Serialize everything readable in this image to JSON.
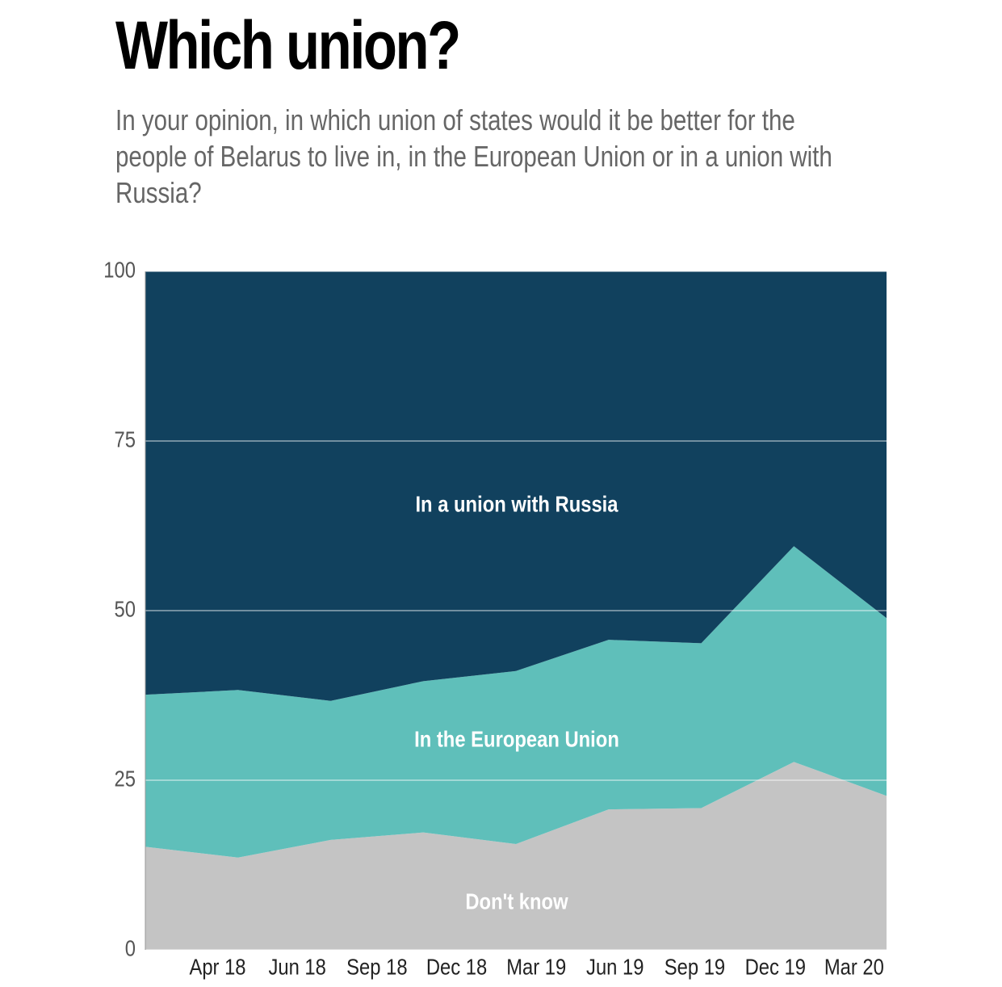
{
  "chart_data": {
    "type": "stacked_area",
    "title": "Which union?",
    "subtitle": "In your opinion, in which union of states would it be better for the people of Belarus to live in, in the European Union or in a union with Russia?",
    "x": [
      0,
      1,
      2,
      3,
      4,
      5,
      6,
      7,
      8
    ],
    "xlim": [
      0,
      8
    ],
    "xticks": [
      {
        "value": 0.78,
        "label": "Apr 18"
      },
      {
        "value": 1.64,
        "label": "Jun 18"
      },
      {
        "value": 2.5,
        "label": "Sep 18"
      },
      {
        "value": 3.36,
        "label": "Dec 18"
      },
      {
        "value": 4.22,
        "label": "Mar 19"
      },
      {
        "value": 5.07,
        "label": "Jun 19"
      },
      {
        "value": 5.93,
        "label": "Sep 19"
      },
      {
        "value": 6.8,
        "label": "Dec 19"
      },
      {
        "value": 7.65,
        "label": "Mar 20"
      }
    ],
    "ylim": [
      0,
      100
    ],
    "yticks": [
      0,
      25,
      50,
      75,
      100
    ],
    "grid": true,
    "series": [
      {
        "name": "Don't know",
        "color": "#c4c4c4",
        "values": [
          15.2,
          13.6,
          16.2,
          17.3,
          15.6,
          20.7,
          20.9,
          27.7,
          22.7
        ]
      },
      {
        "name": "In the European Union",
        "color": "#5fbfba",
        "values": [
          22.4,
          24.7,
          20.5,
          22.3,
          25.5,
          25.0,
          24.3,
          31.8,
          26.2
        ]
      },
      {
        "name": "In a union with Russia",
        "color": "#11415e",
        "values": [
          62.4,
          61.7,
          63.3,
          60.4,
          58.9,
          54.3,
          54.8,
          40.5,
          51.1
        ]
      }
    ]
  }
}
